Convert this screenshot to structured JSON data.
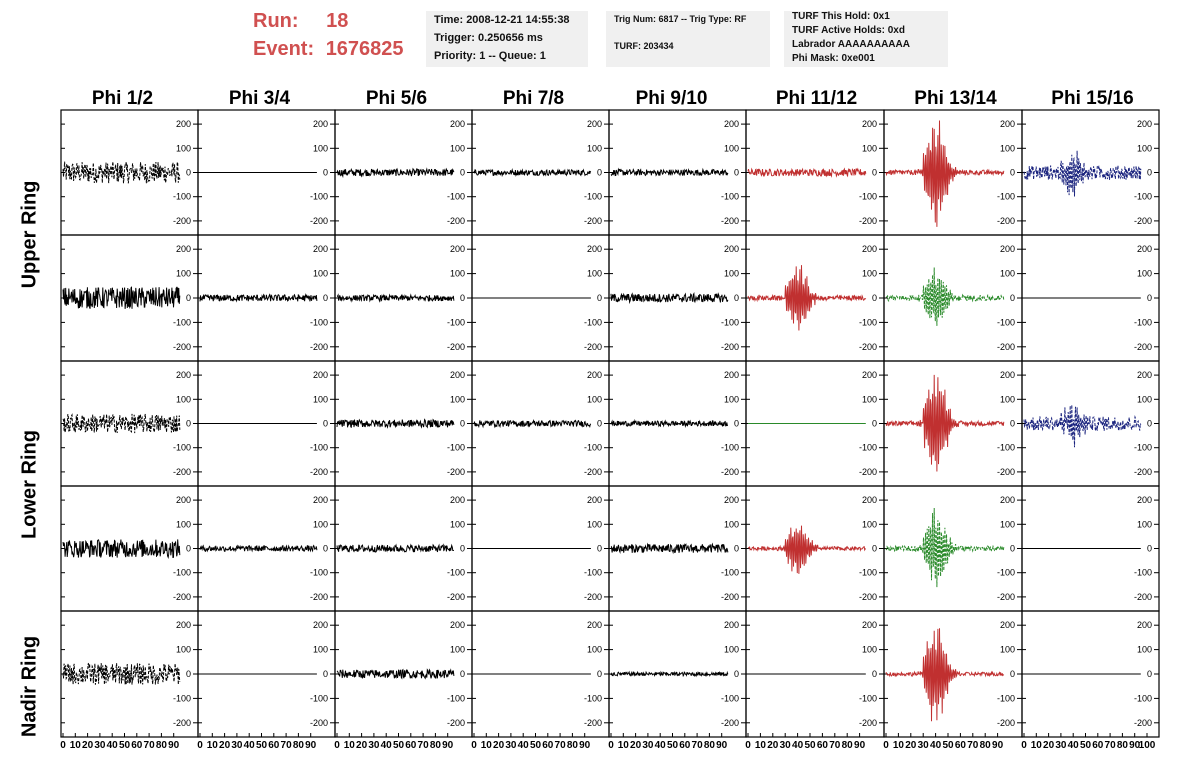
{
  "header": {
    "run_label": "Run:",
    "run_value": "18",
    "event_label": "Event:",
    "event_value": "1676825",
    "time_line": "Time: 2008-12-21 14:55:38",
    "trigger_line": "Trigger: 0.250656 ms",
    "priority_line": "Priority: 1 -- Queue: 1",
    "trig_line": "Trig Num: 6817 -- Trig Type: RF",
    "turf_line": "TURF: 203434",
    "turf_hold_line": "TURF This Hold: 0x1",
    "turf_active_line": "TURF Active Holds: 0xd",
    "labrador_line": "Labrador AAAAAAAAAA",
    "phi_mask_line": "Phi Mask: 0xe001"
  },
  "columns": [
    "Phi 1/2",
    "Phi 3/4",
    "Phi 5/6",
    "Phi 7/8",
    "Phi 9/10",
    "Phi 11/12",
    "Phi 13/14",
    "Phi 15/16"
  ],
  "rings": [
    "Upper Ring",
    "Lower Ring",
    "Nadir Ring"
  ],
  "chart_data": {
    "type": "line",
    "grid": "8 columns x 5 rows of waveform panels",
    "xlim": [
      0,
      100
    ],
    "ylim": [
      -250,
      250
    ],
    "x_ticks": [
      "0",
      "10",
      "20",
      "30",
      "40",
      "50",
      "60",
      "70",
      "80",
      "90",
      "100"
    ],
    "y_ticks": [
      "200",
      "100",
      "0",
      "-100",
      "-200"
    ],
    "colors": {
      "black": "#000000",
      "red": "#c03030",
      "green": "#2a8a2a",
      "blue": "#1a237e"
    },
    "panels": [
      [
        {
          "color": "black",
          "style": "dashed",
          "amp": 45,
          "burst": 0
        },
        {
          "color": "black",
          "style": "solid",
          "amp": 0,
          "burst": 0
        },
        {
          "color": "black",
          "style": "solid",
          "amp": 15,
          "burst": 0
        },
        {
          "color": "black",
          "style": "solid",
          "amp": 12,
          "burst": 0
        },
        {
          "color": "black",
          "style": "solid",
          "amp": 13,
          "burst": 0
        },
        {
          "color": "red",
          "style": "solid",
          "amp": 15,
          "burst": 0
        },
        {
          "color": "red",
          "style": "solid",
          "amp": 10,
          "burst": 240
        },
        {
          "color": "blue",
          "style": "dashed",
          "amp": 30,
          "burst": 85
        }
      ],
      [
        {
          "color": "black",
          "style": "solid",
          "amp": 45,
          "burst": 0
        },
        {
          "color": "black",
          "style": "solid",
          "amp": 14,
          "burst": 0
        },
        {
          "color": "black",
          "style": "solid",
          "amp": 12,
          "burst": 0
        },
        {
          "color": "black",
          "style": "solid",
          "amp": 0,
          "burst": 0
        },
        {
          "color": "black",
          "style": "solid",
          "amp": 18,
          "burst": 0
        },
        {
          "color": "red",
          "style": "solid",
          "amp": 10,
          "burst": 150
        },
        {
          "color": "green",
          "style": "dashed",
          "amp": 12,
          "burst": 130
        },
        {
          "color": "black",
          "style": "solid",
          "amp": 0,
          "burst": 0
        }
      ],
      [
        {
          "color": "black",
          "style": "dashed",
          "amp": 40,
          "burst": 0
        },
        {
          "color": "black",
          "style": "solid",
          "amp": 0,
          "burst": 0
        },
        {
          "color": "black",
          "style": "solid",
          "amp": 16,
          "burst": 0
        },
        {
          "color": "black",
          "style": "solid",
          "amp": 13,
          "burst": 0
        },
        {
          "color": "black",
          "style": "solid",
          "amp": 11,
          "burst": 0
        },
        {
          "color": "green",
          "style": "solid",
          "amp": 0,
          "burst": 0
        },
        {
          "color": "red",
          "style": "solid",
          "amp": 10,
          "burst": 240
        },
        {
          "color": "blue",
          "style": "dashed",
          "amp": 30,
          "burst": 80
        }
      ],
      [
        {
          "color": "black",
          "style": "solid",
          "amp": 38,
          "burst": 0
        },
        {
          "color": "black",
          "style": "solid",
          "amp": 12,
          "burst": 0
        },
        {
          "color": "black",
          "style": "solid",
          "amp": 15,
          "burst": 0
        },
        {
          "color": "black",
          "style": "solid",
          "amp": 0,
          "burst": 0
        },
        {
          "color": "black",
          "style": "solid",
          "amp": 18,
          "burst": 0
        },
        {
          "color": "red",
          "style": "solid",
          "amp": 8,
          "burst": 130
        },
        {
          "color": "green",
          "style": "dashed",
          "amp": 10,
          "burst": 170
        },
        {
          "color": "black",
          "style": "solid",
          "amp": 0,
          "burst": 0
        }
      ],
      [
        {
          "color": "black",
          "style": "dashed",
          "amp": 45,
          "burst": 0
        },
        {
          "color": "black",
          "style": "solid",
          "amp": 0,
          "burst": 0
        },
        {
          "color": "black",
          "style": "solid",
          "amp": 18,
          "burst": 0
        },
        {
          "color": "black",
          "style": "solid",
          "amp": 0,
          "burst": 0
        },
        {
          "color": "black",
          "style": "solid",
          "amp": 8,
          "burst": 0
        },
        {
          "color": "black",
          "style": "solid",
          "amp": 0,
          "burst": 0
        },
        {
          "color": "red",
          "style": "solid",
          "amp": 8,
          "burst": 220
        },
        {
          "color": "black",
          "style": "solid",
          "amp": 0,
          "burst": 0
        }
      ]
    ]
  }
}
